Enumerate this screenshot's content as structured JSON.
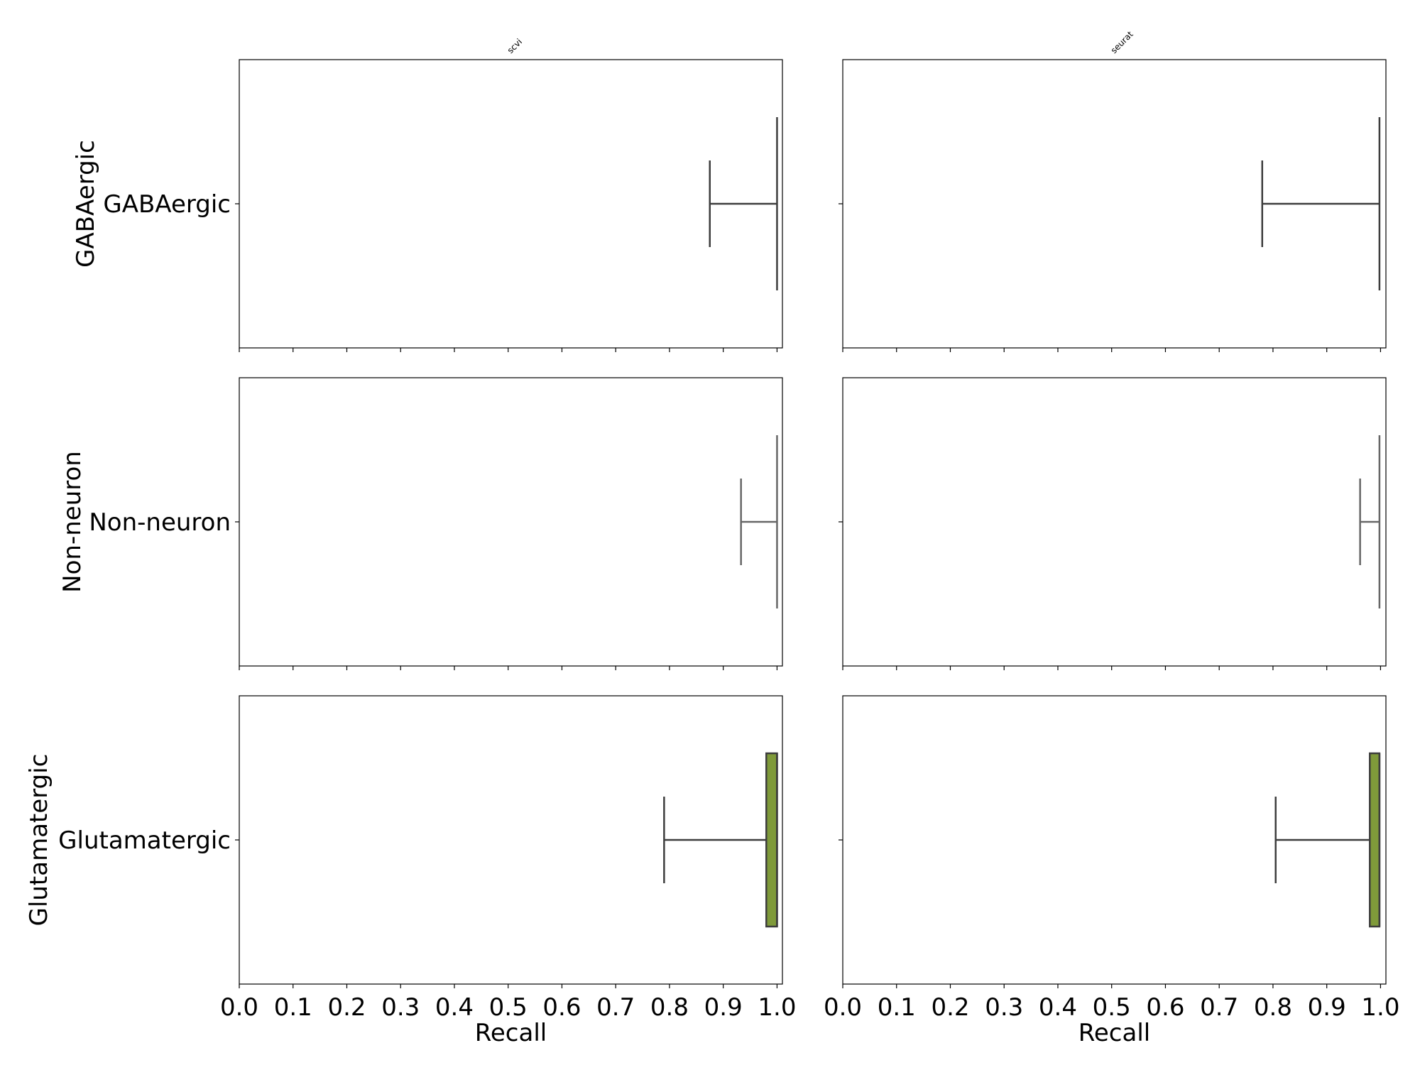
{
  "chart_data": {
    "type": "box",
    "layout": "facet-grid 3 rows x 2 columns",
    "columns": [
      "scvi",
      "seurat"
    ],
    "rows": [
      "GABAergic",
      "Non-neuron",
      "Glutamatergic"
    ],
    "xlabel": "Recall",
    "xlim": [
      0.0,
      1.01
    ],
    "xticks": [
      "0.0",
      "0.1",
      "0.2",
      "0.3",
      "0.4",
      "0.5",
      "0.6",
      "0.7",
      "0.8",
      "0.9",
      "1.0"
    ],
    "panels": [
      {
        "row": "GABAergic",
        "column": "scvi",
        "whisker_low": 0.875,
        "q1": 1.0,
        "median": 1.0,
        "q3": 1.0,
        "whisker_high": 1.0,
        "box_color": null
      },
      {
        "row": "GABAergic",
        "column": "seurat",
        "whisker_low": 0.78,
        "q1": 0.998,
        "median": 0.998,
        "q3": 0.998,
        "whisker_high": 0.998,
        "box_color": null
      },
      {
        "row": "Non-neuron",
        "column": "scvi",
        "whisker_low": 0.933,
        "q1": 1.0,
        "median": 1.0,
        "q3": 1.0,
        "whisker_high": 1.0,
        "box_color": null
      },
      {
        "row": "Non-neuron",
        "column": "seurat",
        "whisker_low": 0.962,
        "q1": 0.998,
        "median": 0.998,
        "q3": 0.998,
        "whisker_high": 0.998,
        "box_color": null
      },
      {
        "row": "Glutamatergic",
        "column": "scvi",
        "whisker_low": 0.79,
        "q1": 0.98,
        "median": 1.0,
        "q3": 1.0,
        "whisker_high": 1.0,
        "box_color": "#7f9a3a"
      },
      {
        "row": "Glutamatergic",
        "column": "seurat",
        "whisker_low": 0.805,
        "q1": 0.98,
        "median": 0.998,
        "q3": 0.998,
        "whisker_high": 0.998,
        "box_color": "#7f9a3a"
      }
    ],
    "line_colors": {
      "GABAergic": "#3d3d3d",
      "Non-neuron": "#666666",
      "Glutamatergic": "#3d3d3d"
    },
    "grid": false,
    "legend": "none"
  }
}
